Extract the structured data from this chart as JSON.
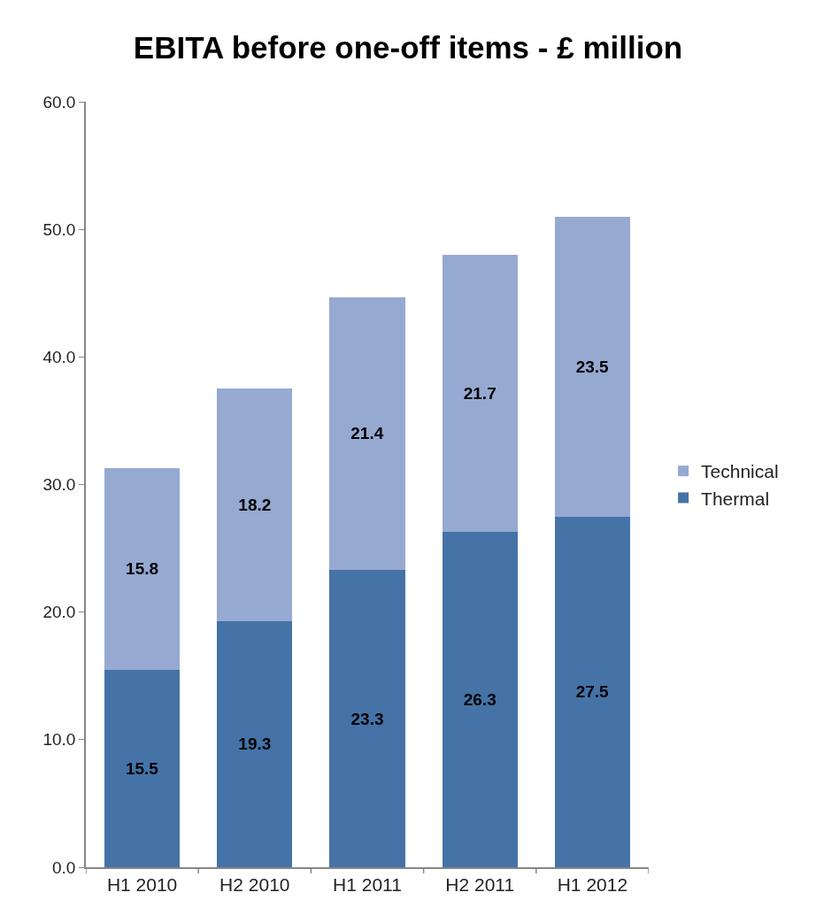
{
  "chart_data": {
    "type": "bar",
    "title": "EBITA before one-off items - £ million",
    "categories": [
      "H1 2010",
      "H2 2010",
      "H1 2011",
      "H2 2011",
      "H1 2012"
    ],
    "stacked": true,
    "series": [
      {
        "name": "Thermal",
        "color": "#4572a7",
        "values": [
          15.5,
          19.3,
          23.3,
          26.3,
          27.5
        ]
      },
      {
        "name": "Technical",
        "color": "#95a9d1",
        "values": [
          15.8,
          18.2,
          21.4,
          21.7,
          23.5
        ]
      }
    ],
    "ylim": [
      0,
      60
    ],
    "yticks": [
      {
        "value": 0,
        "label": "0.0"
      },
      {
        "value": 10,
        "label": "10.0"
      },
      {
        "value": 20,
        "label": "20.0"
      },
      {
        "value": 30,
        "label": "30.0"
      },
      {
        "value": 40,
        "label": "40.0"
      },
      {
        "value": 50,
        "label": "50.0"
      },
      {
        "value": 60,
        "label": "60.0"
      }
    ],
    "data_labels": true,
    "legend": "right"
  }
}
